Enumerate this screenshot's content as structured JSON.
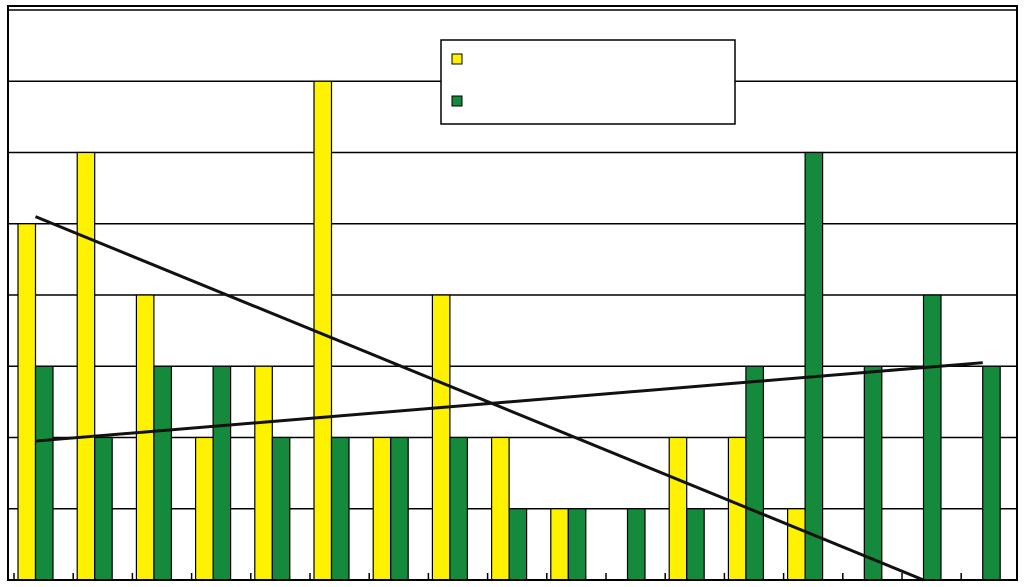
{
  "chart_data": {
    "type": "bar",
    "title": "",
    "xlabel": "",
    "ylabel": "",
    "ylim": [
      0,
      8
    ],
    "grid": true,
    "legend_position": "top-right",
    "categories": [
      "",
      "",
      "",
      "",
      "",
      "",
      "",
      "",
      "",
      "",
      "",
      "",
      "",
      "",
      "",
      "",
      ""
    ],
    "series": [
      {
        "name": "",
        "color": "#fff200",
        "values": [
          5,
          6,
          4,
          2,
          3,
          7,
          2,
          4,
          2,
          1,
          0,
          2,
          2,
          1,
          0,
          0,
          0
        ]
      },
      {
        "name": "",
        "color": "#158a3c",
        "values": [
          3,
          2,
          3,
          3,
          2,
          2,
          2,
          2,
          1,
          1,
          1,
          1,
          3,
          6,
          3,
          4,
          3
        ]
      }
    ],
    "trendlines": [
      {
        "series": 0,
        "color": "#111111",
        "start": [
          0,
          5.1
        ],
        "end": [
          15,
          0
        ]
      },
      {
        "series": 1,
        "color": "#111111",
        "start": [
          0,
          1.95
        ],
        "end": [
          16,
          3.05
        ]
      }
    ]
  }
}
